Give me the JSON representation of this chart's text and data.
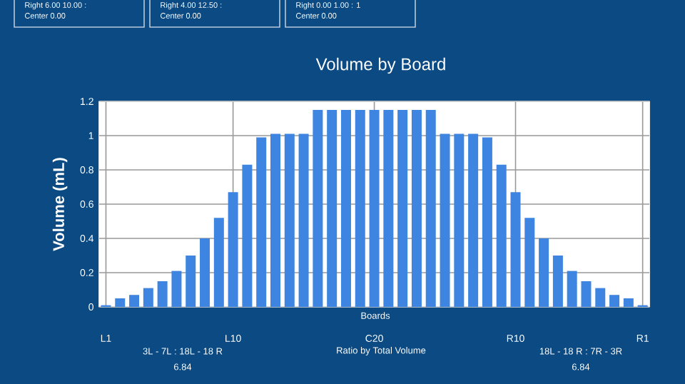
{
  "chart_data": {
    "type": "bar",
    "title": "Volume by Board",
    "xlabel": "Boards",
    "ylabel": "Volume (mL)",
    "categories": [
      "L1",
      null,
      null,
      null,
      null,
      null,
      null,
      null,
      null,
      "L10",
      null,
      null,
      null,
      null,
      null,
      null,
      null,
      null,
      null,
      "C20",
      null,
      null,
      null,
      null,
      null,
      null,
      null,
      null,
      null,
      "R10",
      null,
      null,
      null,
      null,
      null,
      null,
      null,
      null,
      "R1"
    ],
    "values": [
      0.01,
      0.05,
      0.07,
      0.11,
      0.15,
      0.21,
      0.3,
      0.4,
      0.52,
      0.67,
      0.83,
      0.99,
      1.01,
      1.01,
      1.01,
      1.15,
      1.15,
      1.15,
      1.15,
      1.15,
      1.15,
      1.15,
      1.15,
      1.15,
      1.01,
      1.01,
      1.01,
      0.99,
      0.83,
      0.67,
      0.52,
      0.4,
      0.3,
      0.21,
      0.15,
      0.11,
      0.07,
      0.05,
      0.01
    ],
    "color": "#3d85e0",
    "ylim": [
      0,
      1.2
    ],
    "yticks": [
      0,
      0.2,
      0.4,
      0.6,
      0.8,
      1,
      1.2
    ],
    "grid": true,
    "annotations": [
      "Right     6.00   10.00 :",
      "Center    0.00",
      "Right     4.00   12.50 :",
      "Center    0.00",
      "Right     0.00   1.00 : 1",
      "Center    0.00",
      "3L - 7L : 18L - 18 R",
      "6.84",
      "Ratio by Total Volume",
      "18L - 18 R : 7R - 3R",
      "6.84"
    ]
  }
}
